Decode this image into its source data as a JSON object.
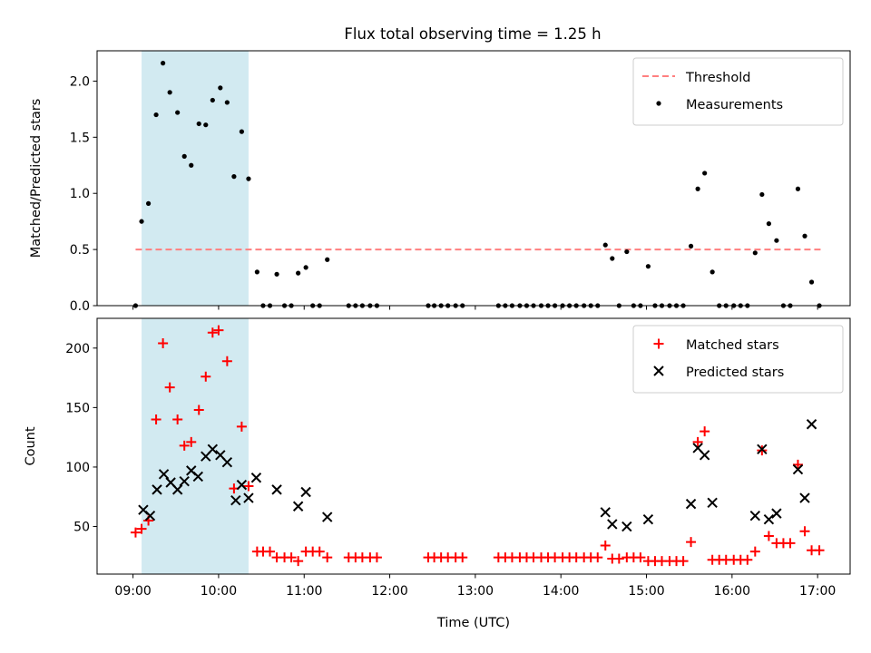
{
  "figure_title": "Flux total observing time = 1.25 h",
  "chart_data": [
    {
      "type": "scatter",
      "ylabel": "Matched/Predicted stars",
      "xlabel": "",
      "ylim": [
        0,
        2.27
      ],
      "yticks": [
        0.0,
        0.5,
        1.0,
        1.5,
        2.0
      ],
      "ytick_labels": [
        "0.0",
        "0.5",
        "1.0",
        "1.5",
        "2.0"
      ],
      "xlim": [
        8.58,
        17.38
      ],
      "xticks": [
        9,
        10,
        11,
        12,
        13,
        14,
        15,
        16,
        17
      ],
      "xtick_labels_hidden": true,
      "shaded_span": [
        9.1,
        10.35
      ],
      "shaded_color": "#add8e6",
      "threshold": {
        "name": "Threshold",
        "y": 0.5,
        "x_range": [
          9.03,
          17.07
        ],
        "color": "#ff7f7f",
        "style": "dashed"
      },
      "legend_position": "upper right",
      "series": [
        {
          "name": "Measurements",
          "marker": "dot",
          "color": "#000000",
          "x": [
            9.03,
            9.1,
            9.18,
            9.27,
            9.35,
            9.43,
            9.52,
            9.6,
            9.68,
            9.77,
            9.85,
            9.93,
            10.02,
            10.1,
            10.18,
            10.27,
            10.35,
            10.45,
            10.52,
            10.6,
            10.68,
            10.77,
            10.85,
            10.93,
            11.02,
            11.1,
            11.18,
            11.27,
            11.52,
            11.6,
            11.68,
            11.77,
            11.85,
            12.45,
            12.52,
            12.6,
            12.68,
            12.77,
            12.85,
            13.27,
            13.35,
            13.43,
            13.52,
            13.6,
            13.68,
            13.77,
            13.85,
            13.93,
            14.02,
            14.1,
            14.18,
            14.27,
            14.35,
            14.43,
            14.52,
            14.6,
            14.68,
            14.77,
            14.85,
            14.93,
            15.02,
            15.1,
            15.18,
            15.27,
            15.35,
            15.43,
            15.52,
            15.6,
            15.68,
            15.77,
            15.85,
            15.93,
            16.02,
            16.1,
            16.18,
            16.27,
            16.35,
            16.43,
            16.52,
            16.6,
            16.68,
            16.77,
            16.85,
            16.93,
            17.02
          ],
          "y": [
            0.0,
            0.75,
            0.91,
            1.7,
            2.16,
            1.9,
            1.72,
            1.33,
            1.25,
            1.62,
            1.61,
            1.83,
            1.94,
            1.81,
            1.15,
            1.55,
            1.13,
            0.3,
            0.0,
            0.0,
            0.28,
            0.0,
            0.0,
            0.29,
            0.34,
            0.0,
            0.0,
            0.41,
            0.0,
            0.0,
            0.0,
            0.0,
            0.0,
            0.0,
            0.0,
            0.0,
            0.0,
            0.0,
            0.0,
            0.0,
            0.0,
            0.0,
            0.0,
            0.0,
            0.0,
            0.0,
            0.0,
            0.0,
            0.0,
            0.0,
            0.0,
            0.0,
            0.0,
            0.0,
            0.54,
            0.42,
            0.0,
            0.48,
            0.0,
            0.0,
            0.35,
            0.0,
            0.0,
            0.0,
            0.0,
            0.0,
            0.53,
            1.04,
            1.18,
            0.3,
            0.0,
            0.0,
            0.0,
            0.0,
            0.0,
            0.47,
            0.99,
            0.73,
            0.58,
            0.0,
            0.0,
            1.04,
            0.62,
            0.21,
            0.0
          ]
        }
      ]
    },
    {
      "type": "scatter",
      "ylabel": "Count",
      "xlabel": "Time (UTC)",
      "ylim": [
        10,
        225
      ],
      "yticks": [
        50,
        100,
        150,
        200
      ],
      "ytick_labels": [
        "50",
        "100",
        "150",
        "200"
      ],
      "xlim": [
        8.58,
        17.38
      ],
      "xticks": [
        9,
        10,
        11,
        12,
        13,
        14,
        15,
        16,
        17
      ],
      "xtick_labels": [
        "09:00",
        "10:00",
        "11:00",
        "12:00",
        "13:00",
        "14:00",
        "15:00",
        "16:00",
        "17:00"
      ],
      "shaded_span": [
        9.1,
        10.35
      ],
      "shaded_color": "#add8e6",
      "legend_position": "upper right",
      "series": [
        {
          "name": "Matched stars",
          "marker": "plus",
          "color": "#ff0000",
          "x": [
            9.03,
            9.1,
            9.18,
            9.27,
            9.35,
            9.43,
            9.52,
            9.6,
            9.68,
            9.77,
            9.85,
            9.93,
            10.0,
            10.1,
            10.18,
            10.27,
            10.35,
            10.45,
            10.52,
            10.6,
            10.68,
            10.77,
            10.85,
            10.93,
            11.02,
            11.1,
            11.18,
            11.27,
            11.52,
            11.6,
            11.68,
            11.77,
            11.85,
            12.45,
            12.52,
            12.6,
            12.68,
            12.77,
            12.85,
            13.27,
            13.35,
            13.43,
            13.52,
            13.6,
            13.68,
            13.77,
            13.85,
            13.93,
            14.02,
            14.1,
            14.18,
            14.27,
            14.35,
            14.43,
            14.52,
            14.6,
            14.68,
            14.77,
            14.85,
            14.93,
            15.02,
            15.1,
            15.18,
            15.27,
            15.35,
            15.43,
            15.52,
            15.6,
            15.68,
            15.77,
            15.85,
            15.93,
            16.02,
            16.1,
            16.18,
            16.27,
            16.35,
            16.43,
            16.52,
            16.6,
            16.68,
            16.77,
            16.85,
            16.93,
            17.02
          ],
          "y": [
            45,
            48,
            55,
            140,
            204,
            167,
            140,
            118,
            121,
            148,
            176,
            213,
            215,
            189,
            82,
            134,
            84,
            29,
            29,
            29,
            24,
            24,
            24,
            21,
            29,
            29,
            29,
            24,
            24,
            24,
            24,
            24,
            24,
            24,
            24,
            24,
            24,
            24,
            24,
            24,
            24,
            24,
            24,
            24,
            24,
            24,
            24,
            24,
            24,
            24,
            24,
            24,
            24,
            24,
            34,
            23,
            23,
            24,
            24,
            24,
            21,
            21,
            21,
            21,
            21,
            21,
            37,
            121,
            130,
            22,
            22,
            22,
            22,
            22,
            22,
            29,
            114,
            42,
            36,
            36,
            36,
            102,
            46,
            30,
            30
          ]
        },
        {
          "name": "Predicted stars",
          "marker": "x",
          "color": "#000000",
          "x": [
            9.12,
            9.2,
            9.28,
            9.36,
            9.44,
            9.52,
            9.6,
            9.68,
            9.76,
            9.85,
            9.93,
            10.02,
            10.1,
            10.2,
            10.27,
            10.35,
            10.44,
            10.68,
            10.93,
            11.02,
            11.27,
            14.52,
            14.6,
            14.77,
            15.02,
            15.52,
            15.6,
            15.68,
            15.77,
            16.27,
            16.35,
            16.43,
            16.52,
            16.77,
            16.85,
            16.93
          ],
          "y": [
            64,
            59,
            81,
            94,
            87,
            81,
            88,
            97,
            92,
            109,
            115,
            110,
            104,
            72,
            85,
            74,
            91,
            81,
            67,
            79,
            58,
            62,
            52,
            50,
            56,
            69,
            116,
            110,
            70,
            59,
            115,
            56,
            61,
            98,
            74,
            136
          ]
        }
      ]
    }
  ]
}
